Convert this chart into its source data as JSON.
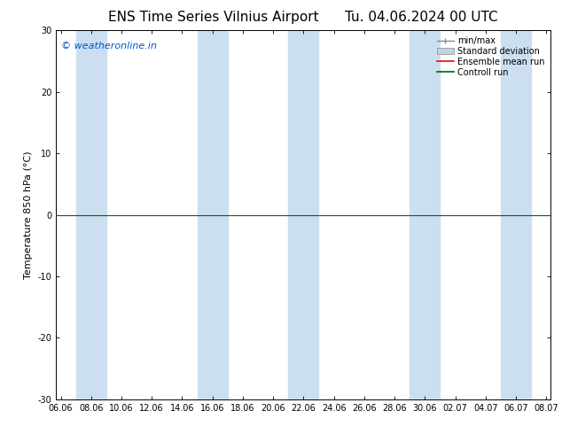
{
  "title_left": "ENS Time Series Vilnius Airport",
  "title_right": "Tu. 04.06.2024 00 UTC",
  "ylabel": "Temperature 850 hPa (°C)",
  "watermark": "© weatheronline.in",
  "watermark_color": "#0055cc",
  "ylim": [
    -30,
    30
  ],
  "yticks": [
    -30,
    -20,
    -10,
    0,
    10,
    20,
    30
  ],
  "xtick_labels": [
    "06.06",
    "08.06",
    "10.06",
    "12.06",
    "14.06",
    "16.06",
    "18.06",
    "20.06",
    "22.06",
    "24.06",
    "26.06",
    "28.06",
    "30.06",
    "02.07",
    "04.07",
    "06.07",
    "08.07"
  ],
  "background_color": "#ffffff",
  "plot_bg_color": "#ffffff",
  "shaded_bands_color": "#ccdff0",
  "shaded_ranges": [
    [
      1,
      3
    ],
    [
      9,
      11
    ],
    [
      15,
      17
    ],
    [
      23,
      25
    ],
    [
      29,
      31
    ]
  ],
  "control_run_color": "#006400",
  "ensemble_mean_color": "#ff0000",
  "minmax_color": "#888888",
  "std_dev_color": "#bed4e8",
  "legend_labels": [
    "min/max",
    "Standard deviation",
    "Ensemble mean run",
    "Controll run"
  ],
  "legend_colors": [
    "#888888",
    "#bed4e8",
    "#ff0000",
    "#006400"
  ],
  "title_fontsize": 11,
  "ylabel_fontsize": 8,
  "tick_fontsize": 7,
  "watermark_fontsize": 8,
  "legend_fontsize": 7
}
